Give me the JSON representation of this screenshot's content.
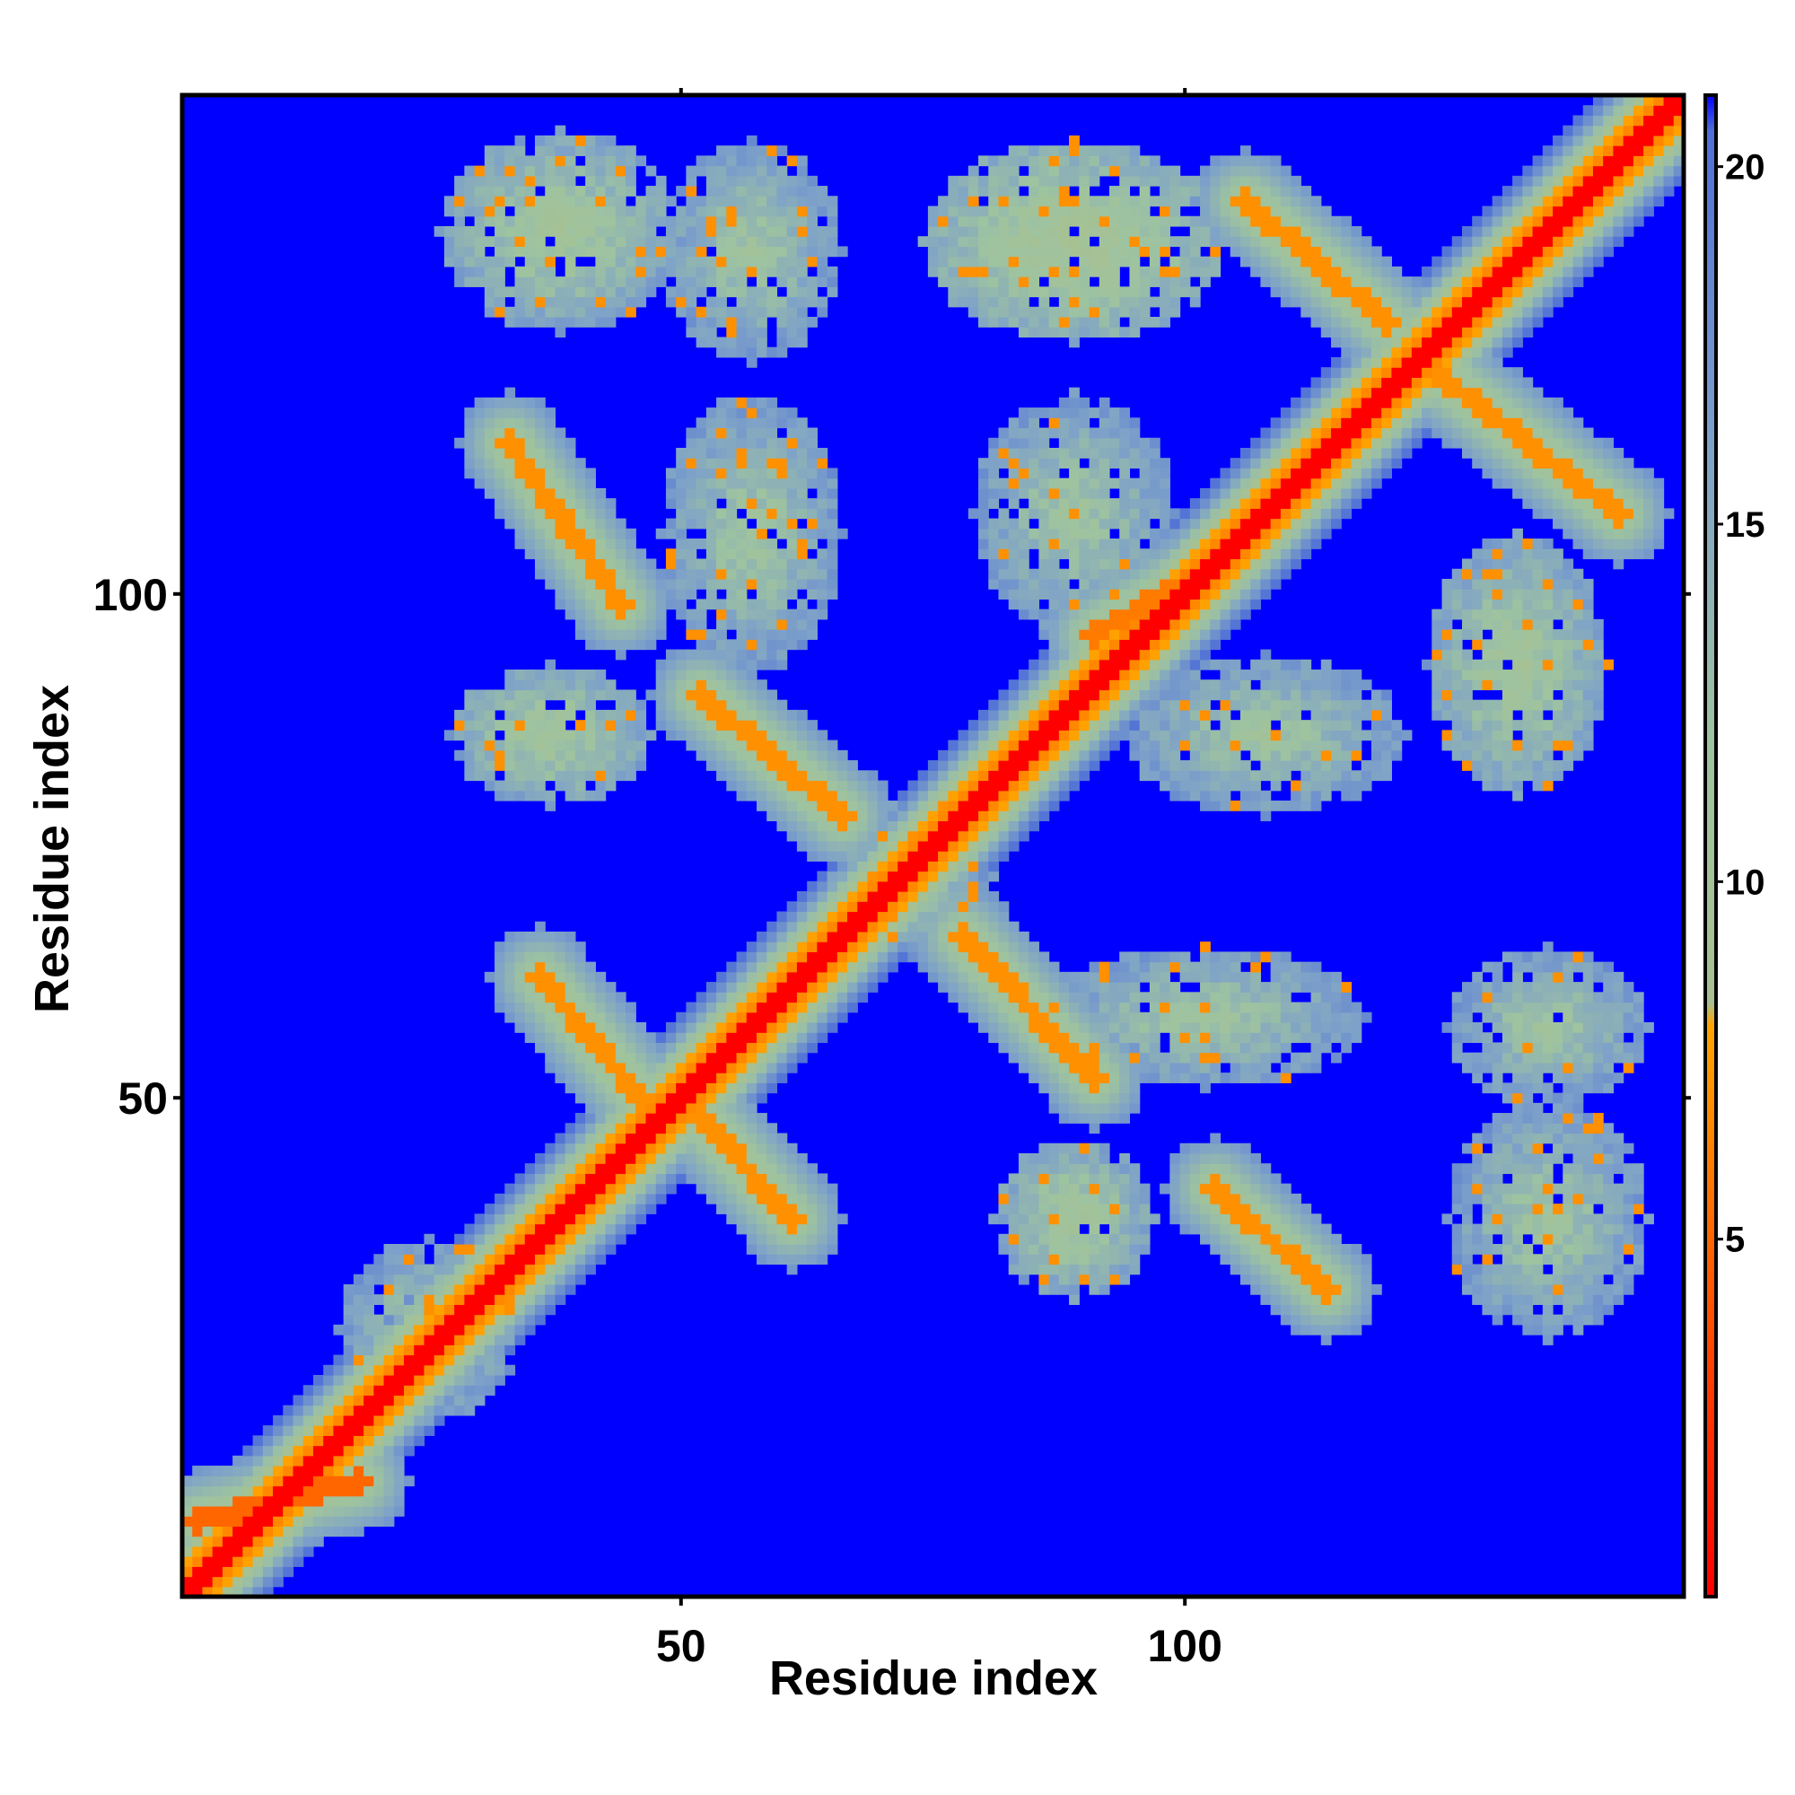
{
  "chart_data": {
    "type": "heatmap",
    "title": "",
    "xlabel": "Residue index",
    "ylabel": "Residue index",
    "n_residues": 150,
    "xlim": [
      0.5,
      149.5
    ],
    "ylim": [
      0.5,
      149.5
    ],
    "x_ticks": [
      50,
      100
    ],
    "x_tick_labels": [
      "50",
      "100"
    ],
    "y_ticks": [
      50,
      100
    ],
    "y_tick_labels": [
      "50",
      "100"
    ],
    "colorbar": {
      "range": [
        0,
        21
      ],
      "ticks": [
        5,
        10,
        15,
        20
      ],
      "tick_labels": [
        "5",
        "10",
        "15",
        "20"
      ],
      "stops": [
        {
          "value": 0,
          "color": "#ff0000"
        },
        {
          "value": 5,
          "color": "#ff6600"
        },
        {
          "value": 8,
          "color": "#ffa500"
        },
        {
          "value": 8.3,
          "color": "#a8c090"
        },
        {
          "value": 12,
          "color": "#9ec3a0"
        },
        {
          "value": 16,
          "color": "#7ea2c8"
        },
        {
          "value": 20.5,
          "color": "#4f6fd8"
        },
        {
          "value": 21,
          "color": "#0000ff"
        }
      ]
    },
    "background_color": "#0000ff",
    "diagonal_band": {
      "range": [
        1,
        149
      ],
      "value": 0,
      "half_width": 1.5
    },
    "features": [
      {
        "kind": "band",
        "direction": "anti",
        "from": [
          2,
          8
        ],
        "to": [
          18,
          12
        ],
        "value": 5
      },
      {
        "kind": "band",
        "direction": "parallel",
        "from": [
          36,
          62
        ],
        "to": [
          46,
          50
        ],
        "value": 7
      },
      {
        "kind": "band",
        "direction": "anti",
        "from": [
          52,
          48
        ],
        "to": [
          61,
          38
        ],
        "value": 7
      },
      {
        "kind": "band",
        "direction": "parallel",
        "from": [
          33,
          115
        ],
        "to": [
          44,
          99
        ],
        "value": 7
      },
      {
        "kind": "band",
        "direction": "parallel",
        "from": [
          52,
          90
        ],
        "to": [
          66,
          78
        ],
        "value": 7
      },
      {
        "kind": "band",
        "direction": "parallel",
        "from": [
          78,
          66
        ],
        "to": [
          91,
          52
        ],
        "value": 7
      },
      {
        "kind": "band",
        "direction": "parallel",
        "from": [
          103,
          41
        ],
        "to": [
          114,
          31
        ],
        "value": 7
      },
      {
        "kind": "band",
        "direction": "parallel",
        "from": [
          106,
          139
        ],
        "to": [
          120,
          127
        ],
        "value": 7
      },
      {
        "kind": "band",
        "direction": "parallel",
        "from": [
          125,
          122
        ],
        "to": [
          143,
          108
        ],
        "value": 7
      },
      {
        "kind": "band",
        "direction": "parallel",
        "from": [
          91,
          96
        ],
        "to": [
          103,
          103
        ],
        "value": 6
      },
      {
        "kind": "cluster",
        "center": [
          38,
          136
        ],
        "size": [
          12,
          10
        ],
        "value": 10
      },
      {
        "kind": "cluster",
        "center": [
          57,
          134
        ],
        "size": [
          9,
          11
        ],
        "value": 11
      },
      {
        "kind": "cluster",
        "center": [
          89,
          135
        ],
        "size": [
          15,
          10
        ],
        "value": 9
      },
      {
        "kind": "cluster",
        "center": [
          37,
          86
        ],
        "size": [
          10,
          7
        ],
        "value": 10
      },
      {
        "kind": "cluster",
        "center": [
          57,
          106
        ],
        "size": [
          9,
          14
        ],
        "value": 11
      },
      {
        "kind": "cluster",
        "center": [
          89,
          108
        ],
        "size": [
          10,
          12
        ],
        "value": 11
      },
      {
        "kind": "cluster",
        "center": [
          108,
          86
        ],
        "size": [
          14,
          8
        ],
        "value": 11
      },
      {
        "kind": "cluster",
        "center": [
          133,
          93
        ],
        "size": [
          9,
          13
        ],
        "value": 10
      },
      {
        "kind": "cluster",
        "center": [
          73,
          72
        ],
        "size": [
          8,
          8
        ],
        "value": 11
      },
      {
        "kind": "cluster",
        "center": [
          25,
          27
        ],
        "size": [
          9,
          9
        ],
        "value": 11
      },
      {
        "kind": "cluster",
        "center": [
          102,
          58
        ],
        "size": [
          16,
          7
        ],
        "value": 11
      },
      {
        "kind": "cluster",
        "center": [
          136,
          57
        ],
        "size": [
          10,
          8
        ],
        "value": 11
      },
      {
        "kind": "cluster",
        "center": [
          136,
          38
        ],
        "size": [
          10,
          12
        ],
        "value": 11
      },
      {
        "kind": "cluster",
        "center": [
          89,
          38
        ],
        "size": [
          8,
          8
        ],
        "value": 10
      }
    ]
  }
}
